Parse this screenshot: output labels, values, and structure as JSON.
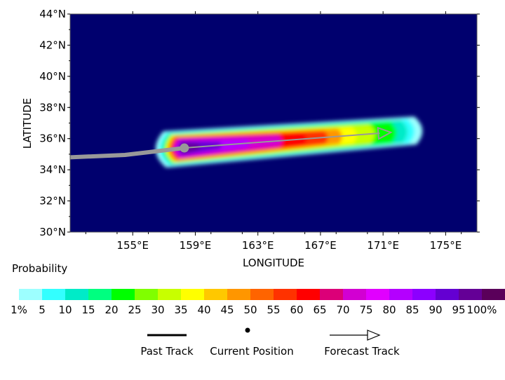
{
  "map": {
    "y_axis_label": "LATITUDE",
    "x_axis_label": "LONGITUDE",
    "lat_ticks": [
      "44°N",
      "42°N",
      "40°N",
      "38°N",
      "36°N",
      "34°N",
      "32°N",
      "30°N"
    ],
    "lon_ticks": [
      "155°E",
      "159°E",
      "163°E",
      "167°E",
      "171°E",
      "175°E"
    ],
    "lat_range": [
      30,
      44
    ],
    "lon_range": [
      151,
      177
    ],
    "background_color": "#00006e"
  },
  "legend": {
    "title": "Probability",
    "colors": [
      "#9dffff",
      "#33ffff",
      "#00ebc8",
      "#00ff80",
      "#00ff00",
      "#80ff00",
      "#c8ff00",
      "#ffff00",
      "#ffc800",
      "#ff9600",
      "#ff6400",
      "#ff3200",
      "#ff0000",
      "#dc0078",
      "#d200d2",
      "#e100ff",
      "#b400ff",
      "#8c00ff",
      "#6400d2",
      "#640096",
      "#5a005a"
    ],
    "labels": [
      "1%",
      "5",
      "10",
      "15",
      "20",
      "25",
      "30",
      "35",
      "40",
      "45",
      "50",
      "55",
      "60",
      "65",
      "70",
      "75",
      "80",
      "85",
      "90",
      "95",
      "100%"
    ]
  },
  "key": {
    "past_track_label": "Past Track",
    "current_position_label": "Current Position",
    "forecast_track_label": "Forecast Track"
  },
  "tracks": {
    "past_track": [
      [
        151,
        34.8
      ],
      [
        154.5,
        34.95
      ],
      [
        158.3,
        35.4
      ]
    ],
    "current_position": [
      158.3,
      35.4
    ],
    "forecast_track": [
      [
        158.3,
        35.4
      ],
      [
        171.5,
        36.4
      ]
    ],
    "track_color": "#999999"
  }
}
